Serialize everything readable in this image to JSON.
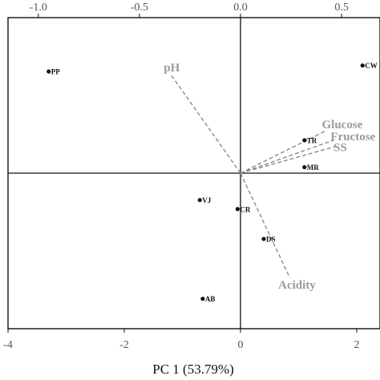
{
  "chart_data": {
    "type": "scatter",
    "title": "",
    "xlabel": "PC 1 (53.79%)",
    "ylabel": "",
    "xlim": [
      -4,
      2.4
    ],
    "ylim": [
      -2.6,
      2.6
    ],
    "x_ticks": [
      -4,
      -2,
      0,
      2
    ],
    "x_tick_labels": [
      "-4",
      "-2",
      "0",
      "2"
    ],
    "top_xlim": [
      -1.0,
      0.5
    ],
    "top_ticks": [
      -1.0,
      -0.5,
      0.0,
      0.5
    ],
    "top_tick_labels": [
      "-1.0",
      "-0.5",
      "0.0",
      "0.5"
    ],
    "top_axis_clip_left_ref": -1.15,
    "grid": false,
    "reference_lines": {
      "x": 0,
      "y": 0
    },
    "samples": [
      {
        "label": "PP",
        "x": -3.3,
        "y": 1.7
      },
      {
        "label": "CW",
        "x": 2.1,
        "y": 1.8
      },
      {
        "label": "TR",
        "x": 1.1,
        "y": 0.55
      },
      {
        "label": "MR",
        "x": 1.1,
        "y": 0.1
      },
      {
        "label": "VJ",
        "x": -0.7,
        "y": -0.45
      },
      {
        "label": "CR",
        "x": -0.05,
        "y": -0.6
      },
      {
        "label": "DS",
        "x": 0.4,
        "y": -1.1
      },
      {
        "label": "AB",
        "x": -0.65,
        "y": -2.1
      }
    ],
    "loadings": [
      {
        "label": "pH",
        "x": -1.2,
        "y": 1.65
      },
      {
        "label": "Acidity",
        "x": 0.85,
        "y": -1.75
      },
      {
        "label": "Glucose",
        "x": 1.45,
        "y": 0.7
      },
      {
        "label": "Fructose",
        "x": 1.6,
        "y": 0.55
      },
      {
        "label": "SS",
        "x": 1.65,
        "y": 0.45
      }
    ],
    "loading_label_offsets": {
      "pH": [
        -0.12,
        0.05
      ],
      "Acidity": [
        -0.2,
        -0.18
      ],
      "Glucose": [
        -0.05,
        0.05
      ],
      "Fructose": [
        -0.05,
        0.0
      ],
      "SS": [
        -0.05,
        -0.08
      ]
    }
  }
}
